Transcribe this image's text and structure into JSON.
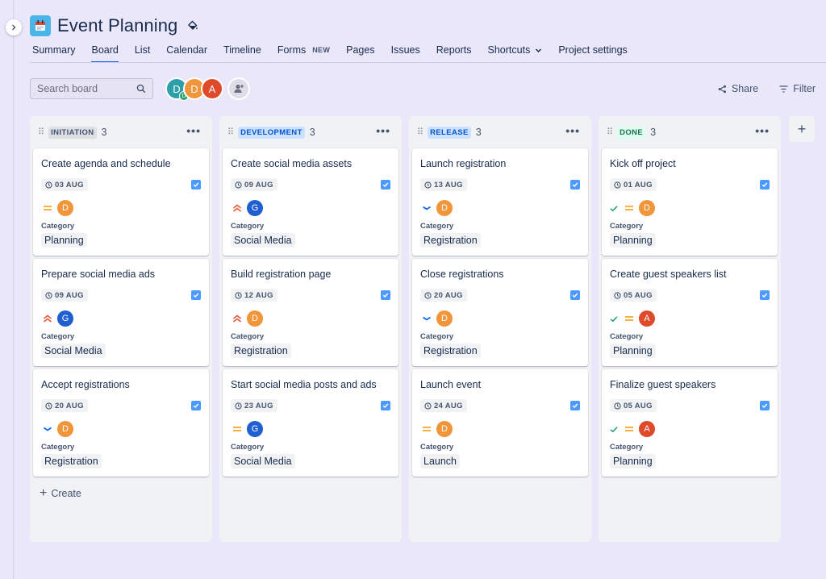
{
  "project": {
    "title": "Event Planning",
    "icon": "calendar-project-icon",
    "icon_color": "#4bb5e8"
  },
  "nav_tabs": [
    {
      "label": "Summary",
      "active": false
    },
    {
      "label": "Board",
      "active": true
    },
    {
      "label": "List",
      "active": false
    },
    {
      "label": "Calendar",
      "active": false
    },
    {
      "label": "Timeline",
      "active": false
    },
    {
      "label": "Forms",
      "active": false,
      "badge": "NEW"
    },
    {
      "label": "Pages",
      "active": false
    },
    {
      "label": "Issues",
      "active": false
    },
    {
      "label": "Reports",
      "active": false
    },
    {
      "label": "Shortcuts",
      "active": false,
      "dropdown": true
    },
    {
      "label": "Project settings",
      "active": false
    }
  ],
  "search": {
    "placeholder": "Search board",
    "value": ""
  },
  "people": [
    {
      "initial": "D",
      "color": "#2d9fa8",
      "sub_initial": "D"
    },
    {
      "initial": "D",
      "color": "#f0953a"
    },
    {
      "initial": "A",
      "color": "#de4a2a"
    }
  ],
  "actions": {
    "share_label": "Share",
    "filter_label": "Filter"
  },
  "columns": [
    {
      "name": "INITIATION",
      "count": "3",
      "lozenge_bg": "#dcdfe4",
      "lozenge_fg": "#44546f",
      "create_label": "Create",
      "cards": [
        {
          "title": "Create agenda and schedule",
          "date": "03 AUG",
          "priority": "medium",
          "assignee": "D",
          "assignee_color": "#f0953a",
          "category_label": "Category",
          "category": "Planning"
        },
        {
          "title": "Prepare social media ads",
          "date": "09 AUG",
          "priority": "high",
          "assignee": "G",
          "assignee_color": "#1f5fcf",
          "category_label": "Category",
          "category": "Social Media"
        },
        {
          "title": "Accept registrations",
          "date": "20 AUG",
          "priority": "low",
          "assignee": "D",
          "assignee_color": "#f0953a",
          "category_label": "Category",
          "category": "Registration"
        }
      ]
    },
    {
      "name": "DEVELOPMENT",
      "count": "3",
      "lozenge_bg": "#cce0ff",
      "lozenge_fg": "#0055cc",
      "cards": [
        {
          "title": "Create social media assets",
          "date": "09 AUG",
          "priority": "high",
          "assignee": "G",
          "assignee_color": "#1f5fcf",
          "category_label": "Category",
          "category": "Social Media"
        },
        {
          "title": "Build registration page",
          "date": "12 AUG",
          "priority": "high",
          "assignee": "D",
          "assignee_color": "#f0953a",
          "category_label": "Category",
          "category": "Registration"
        },
        {
          "title": "Start social media posts and ads",
          "date": "23 AUG",
          "priority": "medium",
          "assignee": "G",
          "assignee_color": "#1f5fcf",
          "category_label": "Category",
          "category": "Social Media"
        }
      ]
    },
    {
      "name": "RELEASE",
      "count": "3",
      "lozenge_bg": "#cce0ff",
      "lozenge_fg": "#0055cc",
      "cards": [
        {
          "title": "Launch registration",
          "date": "13 AUG",
          "priority": "low",
          "assignee": "D",
          "assignee_color": "#f0953a",
          "category_label": "Category",
          "category": "Registration"
        },
        {
          "title": "Close registrations",
          "date": "20 AUG",
          "priority": "low",
          "assignee": "D",
          "assignee_color": "#f0953a",
          "category_label": "Category",
          "category": "Registration"
        },
        {
          "title": "Launch event",
          "date": "24 AUG",
          "priority": "medium",
          "assignee": "D",
          "assignee_color": "#f0953a",
          "category_label": "Category",
          "category": "Launch"
        }
      ]
    },
    {
      "name": "DONE",
      "count": "3",
      "lozenge_bg": "#dcfff1",
      "lozenge_fg": "#216e4e",
      "cards": [
        {
          "title": "Kick off project",
          "date": "01 AUG",
          "priority": "medium",
          "done": true,
          "assignee": "D",
          "assignee_color": "#f0953a",
          "category_label": "Category",
          "category": "Planning"
        },
        {
          "title": "Create guest speakers list",
          "date": "05 AUG",
          "priority": "medium",
          "done": true,
          "assignee": "A",
          "assignee_color": "#de4a2a",
          "category_label": "Category",
          "category": "Planning"
        },
        {
          "title": "Finalize guest speakers",
          "date": "05 AUG",
          "priority": "medium",
          "done": true,
          "assignee": "A",
          "assignee_color": "#de4a2a",
          "category_label": "Category",
          "category": "Planning"
        }
      ]
    }
  ],
  "add_column_label": "+"
}
